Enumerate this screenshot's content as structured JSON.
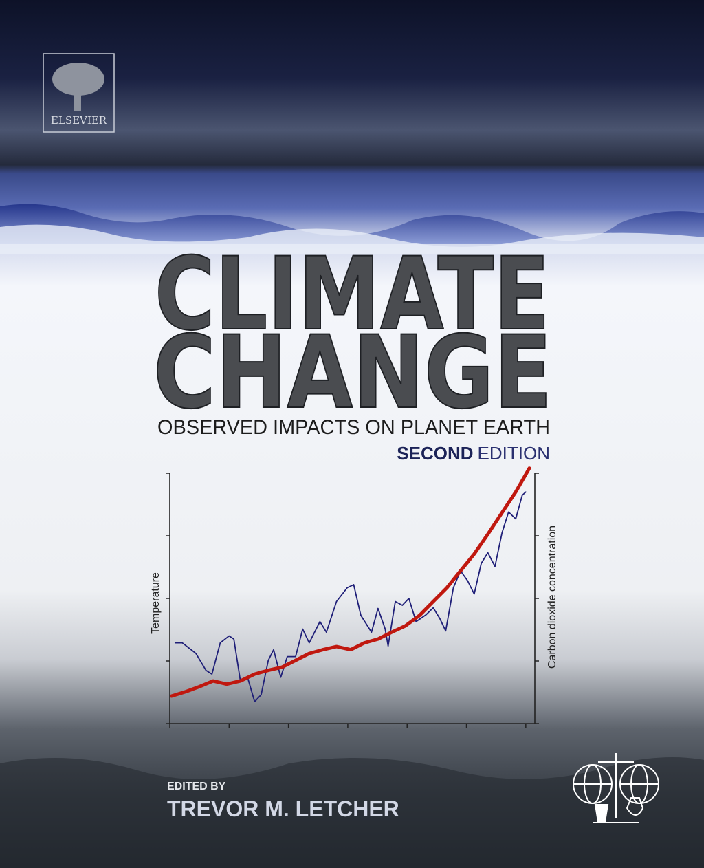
{
  "cover": {
    "publisher": "ELSEVIER",
    "title_line_1": "CLIMATE",
    "title_line_2": "CHANGE",
    "subtitle": "OBSERVED IMPACTS ON PLANET EARTH",
    "edition_bold": "SECOND",
    "edition_rest": "EDITION",
    "editor_label": "EDITED BY",
    "editor": "TREVOR M. LETCHER"
  },
  "chart_data": {
    "type": "line",
    "y_label": "Temperature",
    "y2_label": "Carbon dioxide concentration",
    "xlim": [
      0,
      62
    ],
    "xticks": [
      0,
      10,
      20,
      30,
      40,
      50,
      60
    ],
    "ylim": [
      0,
      40
    ],
    "yticks": [
      0,
      10,
      20,
      30,
      40
    ],
    "y2lim": [
      0,
      40
    ],
    "y2ticks": [
      0,
      10,
      20,
      30,
      40
    ],
    "series": [
      {
        "color": "#1f1f78",
        "x": [
          0.9,
          2.1,
          4.4,
          6.1,
          7.1,
          8.5,
          10.0,
          10.8,
          11.9,
          13.1,
          14.3,
          15.4,
          16.6,
          17.5,
          18.7,
          19.8,
          21.2,
          22.4,
          23.5,
          25.3,
          26.4,
          28.1,
          29.9,
          31.0,
          32.2,
          34.0,
          35.1,
          36.3,
          36.8,
          38.0,
          39.2,
          40.3,
          41.5,
          43.2,
          44.4,
          45.5,
          46.5,
          47.8,
          49.0,
          50.2,
          51.3,
          52.5,
          53.6,
          54.8,
          56.0,
          57.1,
          58.3,
          59.4,
          60.0
        ],
        "values": [
          12.9,
          12.9,
          11.2,
          8.5,
          7.9,
          12.9,
          14.0,
          13.5,
          6.8,
          7.4,
          3.5,
          4.6,
          10.1,
          11.8,
          7.4,
          10.7,
          10.7,
          15.1,
          12.9,
          16.3,
          14.6,
          19.5,
          21.7,
          22.2,
          17.3,
          14.6,
          18.4,
          15.1,
          12.4,
          19.5,
          18.9,
          20.0,
          16.3,
          17.4,
          18.5,
          16.8,
          14.8,
          21.7,
          24.4,
          22.8,
          20.7,
          25.6,
          27.3,
          25.1,
          30.5,
          33.8,
          32.7,
          36.5,
          37.0
        ]
      },
      {
        "color": "#c0180f",
        "axis": "y2",
        "x": [
          0.3,
          2.7,
          5.0,
          7.3,
          9.6,
          11.9,
          14.3,
          16.6,
          18.9,
          21.2,
          23.5,
          25.8,
          28.1,
          30.5,
          32.8,
          35.1,
          37.4,
          39.7,
          42.1,
          44.4,
          46.7,
          49.0,
          51.3,
          53.7,
          56.0,
          58.3,
          60.6
        ],
        "values": [
          4.4,
          5.1,
          5.9,
          6.8,
          6.3,
          6.8,
          7.9,
          8.5,
          9.0,
          10.1,
          11.2,
          11.8,
          12.3,
          11.8,
          12.9,
          13.5,
          14.6,
          15.6,
          17.3,
          19.5,
          21.7,
          24.4,
          27.1,
          30.4,
          33.7,
          37.0,
          40.8
        ]
      }
    ]
  }
}
